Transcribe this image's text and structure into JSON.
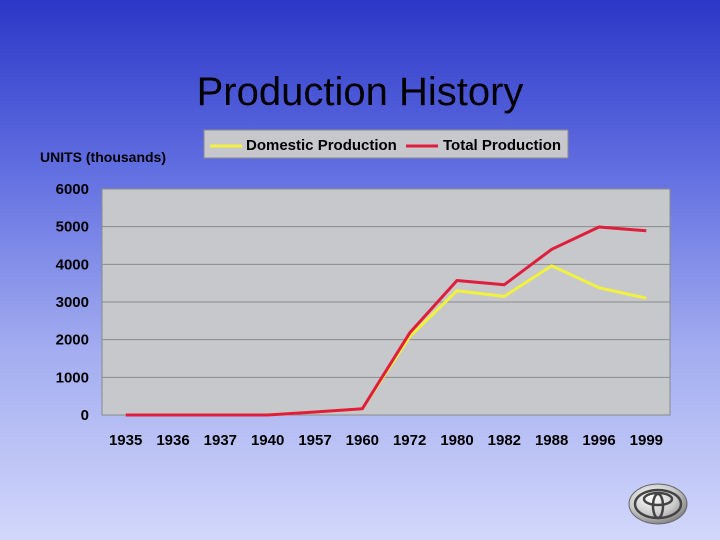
{
  "slide": {
    "title": "Production History"
  },
  "chart_data": {
    "type": "line",
    "title": "",
    "xlabel": "",
    "ylabel": "UNITS (thousands)",
    "categories": [
      "1935",
      "1936",
      "1937",
      "1940",
      "1957",
      "1960",
      "1972",
      "1980",
      "1982",
      "1988",
      "1996",
      "1999"
    ],
    "ylim": [
      0,
      6000
    ],
    "yticks": [
      0,
      1000,
      2000,
      3000,
      4000,
      5000,
      6000
    ],
    "grid": true,
    "legend_position": "top",
    "series": [
      {
        "name": "Domestic Production",
        "color": "#f2f23c",
        "values": [
          0,
          0,
          0,
          0,
          80,
          165,
          2080,
          3300,
          3150,
          3960,
          3380,
          3100
        ]
      },
      {
        "name": "Total Production",
        "color": "#e01e3c",
        "values": [
          0,
          0,
          0,
          0,
          80,
          165,
          2180,
          3570,
          3460,
          4400,
          4990,
          4890
        ]
      }
    ]
  },
  "logo": {
    "icon": "toyota-logo-icon"
  }
}
